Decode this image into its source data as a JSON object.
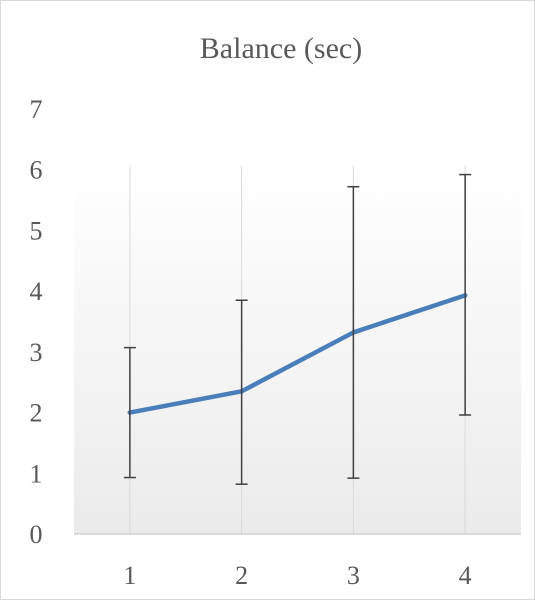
{
  "chart_data": {
    "type": "line",
    "title": "Balance (sec)",
    "xlabel": "",
    "ylabel": "",
    "categories": [
      "1",
      "2",
      "3",
      "4"
    ],
    "series": [
      {
        "values": [
          2.0,
          2.35,
          3.32,
          3.93
        ],
        "error_upper": [
          3.07,
          3.85,
          5.72,
          5.92
        ],
        "error_lower": [
          0.93,
          0.82,
          0.92,
          1.96
        ]
      }
    ],
    "ylim": [
      0,
      7
    ],
    "yticks": [
      "0",
      "1",
      "2",
      "3",
      "4",
      "5",
      "6",
      "7"
    ],
    "grid": "vertical",
    "legend": "none",
    "colors": {
      "line": "#4a7ebb",
      "error_bar": "#404040",
      "grid": "#d9d9d9",
      "axis": "#bfbfbf",
      "text": "#595959",
      "plot_gradient_top": "#ffffff",
      "plot_gradient_bottom": "#ebebeb"
    }
  }
}
